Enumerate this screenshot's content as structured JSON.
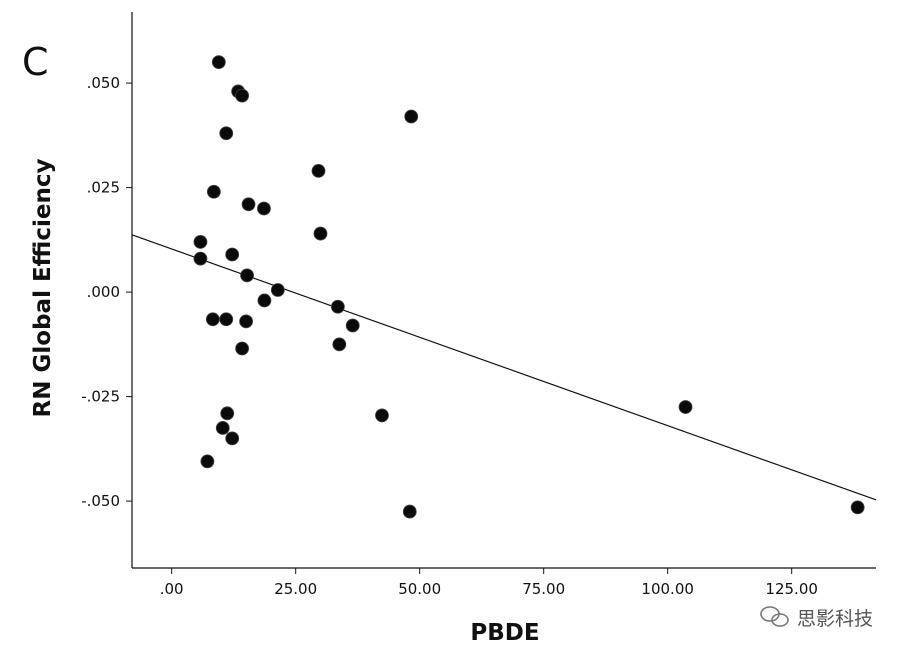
{
  "panel_label": "C",
  "watermark": {
    "text": "思影科技",
    "icon": "wechat-icon"
  },
  "chart_data": {
    "type": "scatter",
    "title": "",
    "xlabel": "PBDE",
    "ylabel": "RN Global Efficiency",
    "xlim": [
      -8,
      142
    ],
    "ylim": [
      -0.066,
      0.067
    ],
    "xticks": [
      0,
      25,
      50,
      75,
      100,
      125
    ],
    "xtick_labels": [
      ".00",
      "25.00",
      "50.00",
      "75.00",
      "100.00",
      "125.00"
    ],
    "yticks": [
      0.05,
      0.025,
      0,
      -0.025,
      -0.05
    ],
    "ytick_labels": [
      ".050",
      ".025",
      ".000",
      "-.025",
      "-.050"
    ],
    "grid": false,
    "points": [
      {
        "x": 9.5,
        "y": 0.055
      },
      {
        "x": 13.4,
        "y": 0.048
      },
      {
        "x": 14.2,
        "y": 0.047
      },
      {
        "x": 11.0,
        "y": 0.038
      },
      {
        "x": 48.3,
        "y": 0.042
      },
      {
        "x": 29.6,
        "y": 0.029
      },
      {
        "x": 8.5,
        "y": 0.024
      },
      {
        "x": 15.5,
        "y": 0.021
      },
      {
        "x": 18.6,
        "y": 0.02
      },
      {
        "x": 30.0,
        "y": 0.014
      },
      {
        "x": 5.8,
        "y": 0.012
      },
      {
        "x": 12.2,
        "y": 0.009
      },
      {
        "x": 5.8,
        "y": 0.008
      },
      {
        "x": 15.2,
        "y": 0.004
      },
      {
        "x": 21.4,
        "y": 0.0005
      },
      {
        "x": 18.7,
        "y": -0.002
      },
      {
        "x": 33.5,
        "y": -0.0035
      },
      {
        "x": 8.3,
        "y": -0.0065
      },
      {
        "x": 11.0,
        "y": -0.0065
      },
      {
        "x": 15.0,
        "y": -0.007
      },
      {
        "x": 36.5,
        "y": -0.008
      },
      {
        "x": 14.2,
        "y": -0.0135
      },
      {
        "x": 33.8,
        "y": -0.0125
      },
      {
        "x": 42.4,
        "y": -0.0295
      },
      {
        "x": 103.6,
        "y": -0.0275
      },
      {
        "x": 11.2,
        "y": -0.029
      },
      {
        "x": 10.3,
        "y": -0.0325
      },
      {
        "x": 12.2,
        "y": -0.035
      },
      {
        "x": 7.2,
        "y": -0.0405
      },
      {
        "x": 48.0,
        "y": -0.0525
      },
      {
        "x": 138.3,
        "y": -0.0515
      }
    ],
    "fit_line": {
      "x": [
        -8,
        142
      ],
      "y": [
        0.0137,
        -0.0497
      ]
    }
  }
}
